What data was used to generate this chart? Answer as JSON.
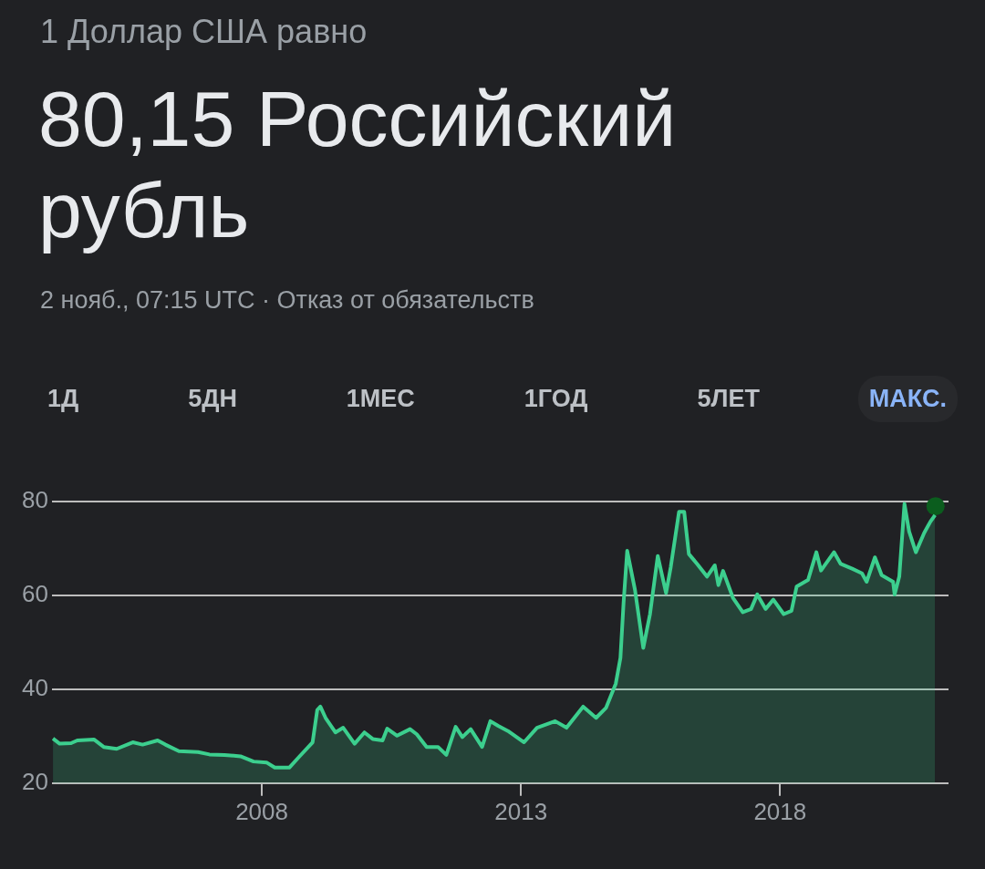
{
  "chart_data": {
    "type": "area",
    "title": "1 Доллар США равно",
    "subtitle": "80,15 Российский рубль",
    "annotations": [
      "2 нояб., 07:15 UTC · Отказ от обязательств",
      "1Д",
      "5ДН",
      "1МЕС",
      "1ГОД",
      "5ЛЕТ",
      "МАКС."
    ],
    "series": [
      {
        "color": "#3ccf8e",
        "x": [
          2003.97,
          2004.1,
          2004.32,
          2004.44,
          2004.76,
          2004.95,
          2005.2,
          2005.51,
          2005.7,
          2005.99,
          2006.14,
          2006.4,
          2006.77,
          2006.99,
          2007.28,
          2007.59,
          2007.84,
          2008.09,
          2008.25,
          2008.53,
          2008.72,
          2008.98,
          2009.07,
          2009.13,
          2009.23,
          2009.42,
          2009.57,
          2009.79,
          2009.98,
          2010.14,
          2010.33,
          2010.42,
          2010.61,
          2010.86,
          2010.99,
          2011.18,
          2011.4,
          2011.56,
          2011.74,
          2011.87,
          2012.03,
          2012.25,
          2012.41,
          2012.56,
          2012.75,
          2013.06,
          2013.31,
          2013.66,
          2013.88,
          2014.2,
          2014.45,
          2014.64,
          2014.83,
          2014.92,
          2014.98,
          2015.05,
          2015.2,
          2015.36,
          2015.49,
          2015.64,
          2015.8,
          2015.89,
          2016.05,
          2016.15,
          2016.24,
          2016.4,
          2016.59,
          2016.74,
          2016.81,
          2016.9,
          2017.09,
          2017.28,
          2017.44,
          2017.56,
          2017.72,
          2017.87,
          2018.07,
          2018.22,
          2018.32,
          2018.54,
          2018.7,
          2018.79,
          2019.04,
          2019.17,
          2019.39,
          2019.58,
          2019.67,
          2019.83,
          2019.96,
          2020.18,
          2020.21,
          2020.3,
          2020.4,
          2020.49,
          2020.62,
          2020.78,
          2020.9,
          2020.99
        ],
        "values": [
          29.5,
          28.4,
          28.5,
          29.1,
          29.3,
          27.7,
          27.3,
          28.7,
          28.2,
          29.1,
          28.2,
          26.8,
          26.6,
          26.1,
          26.0,
          25.7,
          24.6,
          24.4,
          23.3,
          23.3,
          25.6,
          28.7,
          35.6,
          36.3,
          33.9,
          30.8,
          31.8,
          28.4,
          30.8,
          29.4,
          29.1,
          31.6,
          30.1,
          31.5,
          30.4,
          27.7,
          27.7,
          26.0,
          32.0,
          29.8,
          31.5,
          27.7,
          33.2,
          32.2,
          31.1,
          28.7,
          31.8,
          33.2,
          31.8,
          36.3,
          33.9,
          36.0,
          41.2,
          46.7,
          58.4,
          69.5,
          61.2,
          48.8,
          56.0,
          68.4,
          60.5,
          66.0,
          77.8,
          77.8,
          68.8,
          66.7,
          64.0,
          66.4,
          62.2,
          65.2,
          59.5,
          56.4,
          57.1,
          60.2,
          57.1,
          59.1,
          56.0,
          56.7,
          61.9,
          63.3,
          69.2,
          65.3,
          69.2,
          66.7,
          65.7,
          64.7,
          62.9,
          68.1,
          64.3,
          62.9,
          60.2,
          64.0,
          79.5,
          73.6,
          69.2,
          73.3,
          75.7,
          77.1
        ]
      },
      {
        "type": "scatter",
        "color": "#0b5d1e",
        "x": [
          2021.0
        ],
        "values": [
          79.0
        ]
      }
    ],
    "xlim": [
      2003.95,
      2021.25
    ],
    "xticks": [
      2008,
      2013,
      2018
    ],
    "ylim": [
      20,
      80
    ],
    "yticks": [
      20,
      40,
      60,
      80
    ],
    "grid": "y",
    "legend": false
  }
}
